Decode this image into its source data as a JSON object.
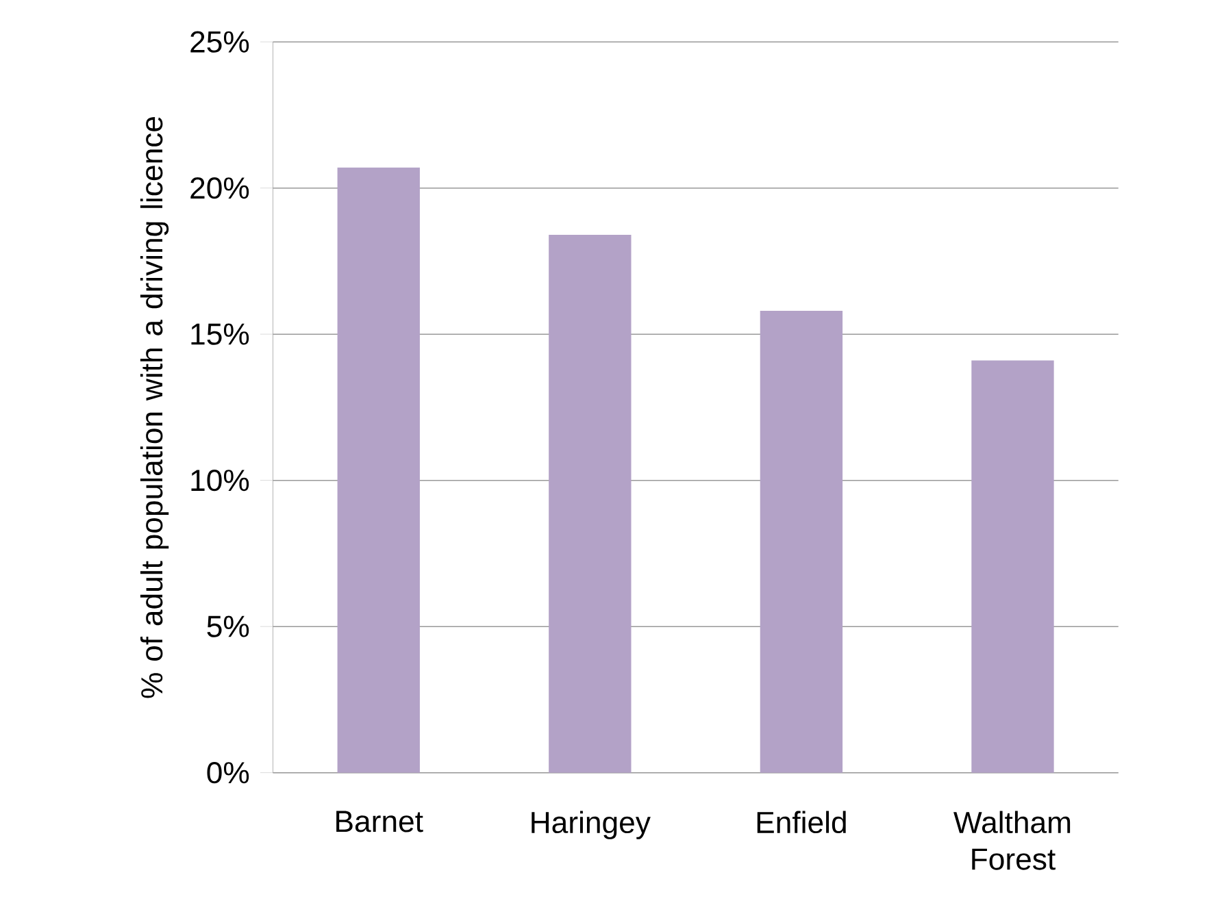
{
  "chart_data": {
    "type": "bar",
    "ylabel": "% of adult population with a driving licence",
    "categories": [
      "Barnet",
      "Haringey",
      "Enfield",
      "Waltham Forest"
    ],
    "values": [
      20.7,
      18.4,
      15.8,
      14.1
    ],
    "color": "#b3a2c7",
    "ylim": [
      0,
      25
    ],
    "yticks": [
      {
        "value": 0,
        "label": "0%"
      },
      {
        "value": 5,
        "label": "5%"
      },
      {
        "value": 10,
        "label": "10%"
      },
      {
        "value": 15,
        "label": "15%"
      },
      {
        "value": 20,
        "label": "20%"
      },
      {
        "value": 25,
        "label": "25%"
      }
    ],
    "grid": "y"
  }
}
